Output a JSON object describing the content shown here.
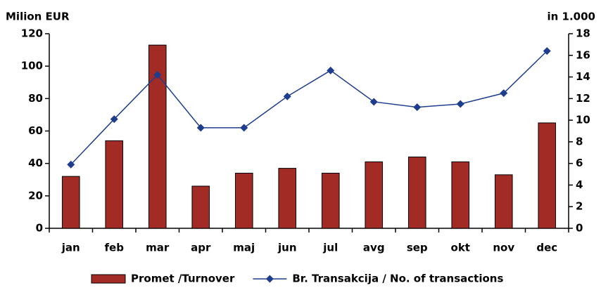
{
  "chart_data": {
    "type": "bar",
    "ylabel": "Milion EUR",
    "y2label": "in 1.000",
    "categories": [
      "jan",
      "feb",
      "mar",
      "apr",
      "maj",
      "jun",
      "jul",
      "avg",
      "sep",
      "okt",
      "nov",
      "dec"
    ],
    "series": [
      {
        "name": "Promet /Turnover",
        "type": "bar",
        "color": "#a32b26",
        "values": [
          32,
          54,
          113,
          26,
          34,
          37,
          34,
          41,
          44,
          41,
          33,
          65
        ]
      },
      {
        "name": "Br. Transakcija / No. of transactions",
        "type": "line",
        "axis": "y2",
        "color": "#1f3d8f",
        "values": [
          5.9,
          10.1,
          14.2,
          9.3,
          9.3,
          12.2,
          14.6,
          11.7,
          11.2,
          11.5,
          12.5,
          16.4
        ]
      }
    ],
    "ylim": [
      0,
      120
    ],
    "yticks": [
      0,
      20,
      40,
      60,
      80,
      100,
      120
    ],
    "y2lim": [
      0,
      18
    ],
    "y2ticks": [
      0,
      2,
      4,
      6,
      8,
      10,
      12,
      14,
      16,
      18
    ],
    "grid": false,
    "legend": "bottom"
  }
}
